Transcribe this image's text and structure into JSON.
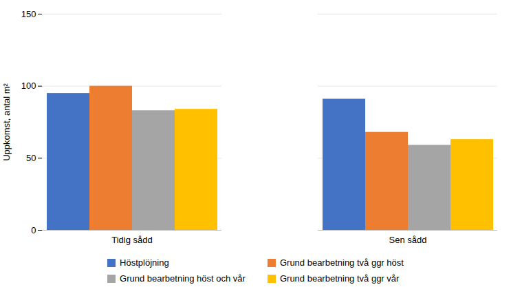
{
  "chart_data": {
    "type": "bar",
    "categories": [
      "Tidig sådd",
      "Sen sådd"
    ],
    "series": [
      {
        "name": "Höstplöjning",
        "color": "#4472C4",
        "values": [
          95,
          91
        ]
      },
      {
        "name": "Grund bearbetning två ggr höst",
        "color": "#ED7D31",
        "values": [
          100,
          68
        ]
      },
      {
        "name": "Grund bearbetning höst och vår",
        "color": "#A5A5A5",
        "values": [
          83,
          59
        ]
      },
      {
        "name": "Grund bearbetning två ggr vår",
        "color": "#FFC000",
        "values": [
          84,
          63
        ]
      }
    ],
    "ylabel": "Uppkomst, antal m²",
    "ylim": [
      0,
      150
    ],
    "yticks": [
      0,
      50,
      100,
      150
    ],
    "grid": true,
    "legend": "bottom"
  }
}
